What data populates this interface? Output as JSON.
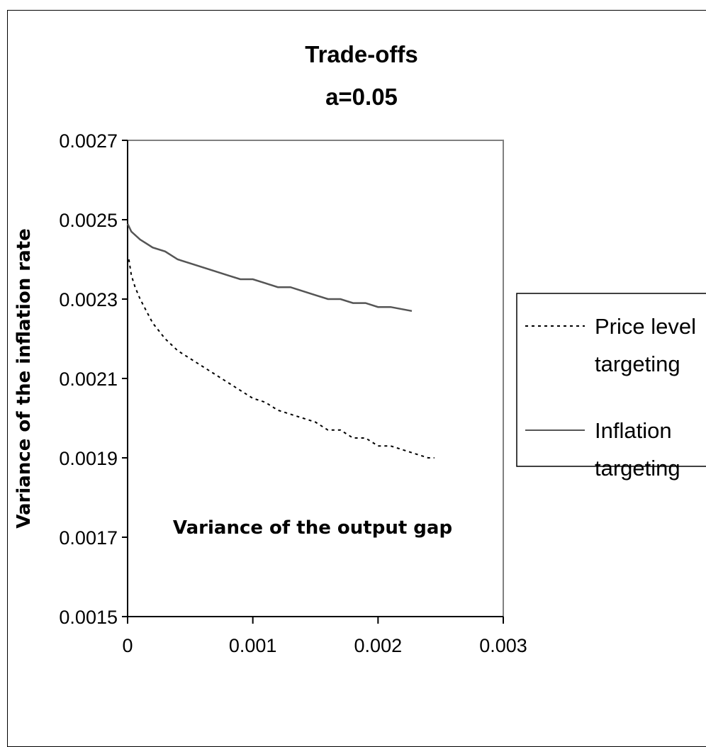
{
  "chart_data": {
    "type": "line",
    "title": "Trade-offs",
    "subtitle": "a=0.05",
    "xlabel": "Variance of the output gap",
    "ylabel": "Variance of the inflation rate",
    "xlim": [
      0,
      0.003
    ],
    "ylim": [
      0.0015,
      0.0027
    ],
    "x_ticks": [
      "0",
      "0.001",
      "0.002",
      "0.003"
    ],
    "y_ticks": [
      "0.0015",
      "0.0017",
      "0.0019",
      "0.0021",
      "0.0023",
      "0.0025",
      "0.0027"
    ],
    "grid": false,
    "legend_position": "right",
    "series": [
      {
        "name": "Price level targeting",
        "legend_lines": [
          "Price level",
          "targeting"
        ],
        "style": "dotted",
        "color": "#000000",
        "points": [
          [
            1e-05,
            0.0024
          ],
          [
            3e-05,
            0.00236
          ],
          [
            6e-05,
            0.00233
          ],
          [
            0.0001,
            0.0023
          ],
          [
            0.00015,
            0.00227
          ],
          [
            0.0002,
            0.00224
          ],
          [
            0.0003,
            0.0022
          ],
          [
            0.0004,
            0.00217
          ],
          [
            0.0005,
            0.00215
          ],
          [
            0.0006,
            0.00213
          ],
          [
            0.0007,
            0.00211
          ],
          [
            0.0008,
            0.00209
          ],
          [
            0.0009,
            0.00207
          ],
          [
            0.001,
            0.00205
          ],
          [
            0.0011,
            0.00204
          ],
          [
            0.0012,
            0.00202
          ],
          [
            0.0013,
            0.00201
          ],
          [
            0.0014,
            0.002
          ],
          [
            0.0015,
            0.00199
          ],
          [
            0.0016,
            0.00197
          ],
          [
            0.0017,
            0.00197
          ],
          [
            0.0018,
            0.00195
          ],
          [
            0.0019,
            0.00195
          ],
          [
            0.002,
            0.00193
          ],
          [
            0.0021,
            0.00193
          ],
          [
            0.0022,
            0.00192
          ],
          [
            0.0023,
            0.00191
          ],
          [
            0.0024,
            0.0019
          ],
          [
            0.00245,
            0.0019
          ]
        ]
      },
      {
        "name": "Inflation targeting",
        "legend_lines": [
          "Inflation",
          "targeting"
        ],
        "style": "solid",
        "color": "#555555",
        "points": [
          [
            0.0,
            0.00249
          ],
          [
            3e-05,
            0.00247
          ],
          [
            0.0001,
            0.00245
          ],
          [
            0.00015,
            0.00244
          ],
          [
            0.0002,
            0.00243
          ],
          [
            0.0003,
            0.00242
          ],
          [
            0.0004,
            0.0024
          ],
          [
            0.0005,
            0.00239
          ],
          [
            0.0006,
            0.00238
          ],
          [
            0.0007,
            0.00237
          ],
          [
            0.0008,
            0.00236
          ],
          [
            0.0009,
            0.00235
          ],
          [
            0.001,
            0.00235
          ],
          [
            0.0011,
            0.00234
          ],
          [
            0.0012,
            0.00233
          ],
          [
            0.0013,
            0.00233
          ],
          [
            0.0014,
            0.00232
          ],
          [
            0.0015,
            0.00231
          ],
          [
            0.0016,
            0.0023
          ],
          [
            0.0017,
            0.0023
          ],
          [
            0.0018,
            0.00229
          ],
          [
            0.0019,
            0.00229
          ],
          [
            0.002,
            0.00228
          ],
          [
            0.0021,
            0.00228
          ],
          [
            0.00227,
            0.00227
          ]
        ]
      }
    ]
  }
}
